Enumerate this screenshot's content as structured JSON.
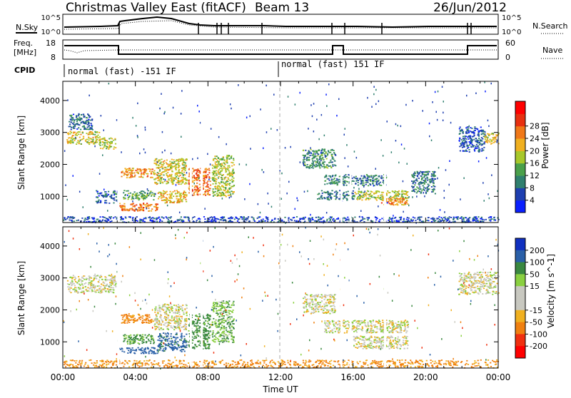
{
  "header": {
    "title": "Christmas Valley East (fitACF)",
    "beam": "Beam 13",
    "date": "26/Jun/2012"
  },
  "top_panels": {
    "nsky_label": "N.Sky",
    "nsky_ticks": [
      "10^5",
      "10^0"
    ],
    "nsearch_label": "N.Search",
    "nsearch_ticks": [
      "10^5",
      "10^0"
    ],
    "freq_label": "Freq.",
    "freq_unit": "[MHz]",
    "freq_ticks": [
      "18",
      "8"
    ],
    "nave_label": "Nave",
    "nave_ticks": [
      "60",
      "0"
    ],
    "cpid_label": "CPID",
    "cpid_segments": [
      {
        "label": "normal (fast) -151 IF",
        "start_h": 0,
        "end_h": 12
      },
      {
        "label": "normal (fast) 151 IF",
        "start_h": 12,
        "end_h": 24
      }
    ]
  },
  "chart_data": [
    {
      "type": "heatmap",
      "name": "power",
      "xlabel": "",
      "ylabel": "Slant Range [km]",
      "xlim": [
        0,
        24
      ],
      "ylim": [
        180,
        4600
      ],
      "yticks": [
        1000,
        2000,
        3000,
        4000
      ],
      "colorbar": {
        "label": "Power [dB]",
        "ticks": [
          4,
          8,
          12,
          16,
          20,
          24,
          28
        ],
        "colors": [
          "#0a20ff",
          "#1e3fb0",
          "#2f7f6e",
          "#4aa04a",
          "#a8c82a",
          "#f0b020",
          "#f07818",
          "#e83010",
          "#ff0000"
        ]
      },
      "echo_regions": [
        {
          "t0": 0.2,
          "t1": 2.0,
          "r0": 2650,
          "r1": 3050,
          "value": 20
        },
        {
          "t0": 2.0,
          "t1": 2.9,
          "r0": 2500,
          "r1": 2850,
          "value": 18
        },
        {
          "t0": 0.3,
          "t1": 1.6,
          "r0": 3100,
          "r1": 3600,
          "value": 8
        },
        {
          "t0": 3.2,
          "t1": 5.0,
          "r0": 1600,
          "r1": 1900,
          "value": 24
        },
        {
          "t0": 3.3,
          "t1": 5.0,
          "r0": 900,
          "r1": 1200,
          "value": 14
        },
        {
          "t0": 3.0,
          "t1": 5.2,
          "r0": 550,
          "r1": 800,
          "value": 26
        },
        {
          "t0": 5.0,
          "t1": 6.8,
          "r0": 1400,
          "r1": 2200,
          "value": 20
        },
        {
          "t0": 5.2,
          "t1": 6.8,
          "r0": 800,
          "r1": 1200,
          "value": 22
        },
        {
          "t0": 6.9,
          "t1": 8.1,
          "r0": 1050,
          "r1": 1900,
          "value": 27
        },
        {
          "t0": 8.2,
          "t1": 9.4,
          "r0": 1000,
          "r1": 2300,
          "value": 18
        },
        {
          "t0": 1.8,
          "t1": 3.0,
          "r0": 800,
          "r1": 1200,
          "value": 8
        },
        {
          "t0": 13.2,
          "t1": 15.0,
          "r0": 1900,
          "r1": 2500,
          "value": 12
        },
        {
          "t0": 14.4,
          "t1": 17.8,
          "r0": 1350,
          "r1": 1700,
          "value": 10
        },
        {
          "t0": 14.0,
          "t1": 16.0,
          "r0": 900,
          "r1": 1200,
          "value": 9
        },
        {
          "t0": 16.0,
          "t1": 19.0,
          "r0": 900,
          "r1": 1200,
          "value": 18
        },
        {
          "t0": 17.5,
          "t1": 19.0,
          "r0": 750,
          "r1": 1000,
          "value": 24
        },
        {
          "t0": 19.2,
          "t1": 20.5,
          "r0": 1100,
          "r1": 1800,
          "value": 10
        },
        {
          "t0": 21.8,
          "t1": 23.2,
          "r0": 2400,
          "r1": 3200,
          "value": 7
        },
        {
          "t0": 23.2,
          "t1": 24.0,
          "r0": 2650,
          "r1": 3000,
          "value": 20
        },
        {
          "t0": 0.0,
          "t1": 24.0,
          "r0": 200,
          "r1": 380,
          "value": 6
        }
      ]
    },
    {
      "type": "heatmap",
      "name": "velocity",
      "xlabel": "Time UT",
      "ylabel": "Slant Range [km]",
      "xlim": [
        0,
        24
      ],
      "ylim": [
        180,
        4600
      ],
      "yticks": [
        1000,
        2000,
        3000,
        4000
      ],
      "xtick_labels": [
        "00:00",
        "04:00",
        "08:00",
        "12:00",
        "16:00",
        "20:00",
        "00:00"
      ],
      "colorbar": {
        "label": "Velocity [m s^-1]",
        "ticks": [
          200,
          100,
          50,
          15,
          -15,
          -50,
          -100,
          -200
        ],
        "colors": [
          "#1030c0",
          "#2a60a8",
          "#3a8840",
          "#8ad040",
          "#c8c8c0",
          "#c8c8c0",
          "#f0b020",
          "#f08010",
          "#f03010",
          "#ff0000"
        ]
      },
      "echo_regions": [
        {
          "t0": 0.2,
          "t1": 2.9,
          "r0": 2550,
          "r1": 3100,
          "value": 0
        },
        {
          "t0": 3.2,
          "t1": 5.0,
          "r0": 1600,
          "r1": 1900,
          "value": -70
        },
        {
          "t0": 3.3,
          "t1": 5.0,
          "r0": 950,
          "r1": 1250,
          "value": 60
        },
        {
          "t0": 3.0,
          "t1": 5.2,
          "r0": 650,
          "r1": 850,
          "value": 150
        },
        {
          "t0": 5.0,
          "t1": 6.8,
          "r0": 1400,
          "r1": 2200,
          "value": 0
        },
        {
          "t0": 5.2,
          "t1": 6.8,
          "r0": 700,
          "r1": 1300,
          "value": 120
        },
        {
          "t0": 6.9,
          "t1": 8.1,
          "r0": 800,
          "r1": 1900,
          "value": 70
        },
        {
          "t0": 8.2,
          "t1": 9.4,
          "r0": 1000,
          "r1": 2300,
          "value": 40
        },
        {
          "t0": 13.2,
          "t1": 15.0,
          "r0": 1900,
          "r1": 2500,
          "value": 0
        },
        {
          "t0": 14.4,
          "t1": 19.0,
          "r0": 1300,
          "r1": 1700,
          "value": 0
        },
        {
          "t0": 16.0,
          "t1": 19.0,
          "r0": 800,
          "r1": 1200,
          "value": 0
        },
        {
          "t0": 21.8,
          "t1": 24.0,
          "r0": 2500,
          "r1": 3200,
          "value": 0
        },
        {
          "t0": 0.0,
          "t1": 24.0,
          "r0": 200,
          "r1": 450,
          "value": -60
        }
      ]
    }
  ]
}
